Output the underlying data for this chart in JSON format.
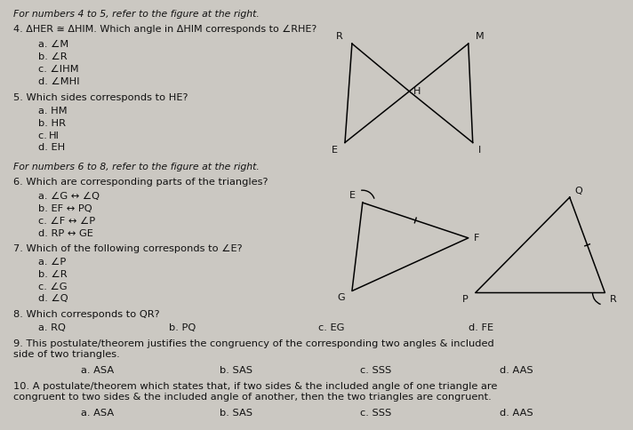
{
  "background_color": "#cbc8c2",
  "text_color": "#111111",
  "title_q4_5": "For numbers 4 to 5, refer to the figure at the right.",
  "q4": "4. ΔHER ≅ ΔHIM. Which angle in ΔHIM corresponds to ∠RHE?",
  "q4a": "a. ∠M",
  "q4b": "b. ∠R",
  "q4c": "c. ∠IHM",
  "q4d": "d. ∠MHI",
  "q5": "5. Which sides corresponds to HE?",
  "q5a": "a. HM",
  "q5b": "b. HR",
  "q5c": "c. HI",
  "q5d": "d. EH",
  "title_q6_8": "For numbers 6 to 8, refer to the figure at the right.",
  "q6": "6. Which are corresponding parts of the triangles?",
  "q6a": "a. ∠G ↔ ∠Q",
  "q6b": "b. EF ↔ PQ",
  "q6c": "c. ∠F ↔ ∠P",
  "q6d": "d. RP ↔ GE",
  "q7": "7. Which of the following corresponds to ∠E?",
  "q7a": "a. ∠P",
  "q7b": "b. ∠R",
  "q7c": "c. ∠G",
  "q7d": "d. ∠Q",
  "q8": "8. Which corresponds to QR?",
  "q8a": "a. RQ",
  "q8b": "b. PQ",
  "q8c": "c. EG",
  "q8d": "d. FE",
  "q9": "9. This postulate/theorem justifies the congruency of the corresponding two angles & included\nside of two triangles.",
  "q9a": "a. ASA",
  "q9b": "b. SAS",
  "q9c": "c. SSS",
  "q9d": "d. AAS",
  "q10": "10. A postulate/theorem which states that, if two sides & the included angle of one triangle are\ncongruent to two sides & the included angle of another, then the two triangles are congruent.",
  "q10a": "a. ASA",
  "q10b": "b. SAS",
  "q10c": "c. SSS",
  "q10d": "d. AAS"
}
